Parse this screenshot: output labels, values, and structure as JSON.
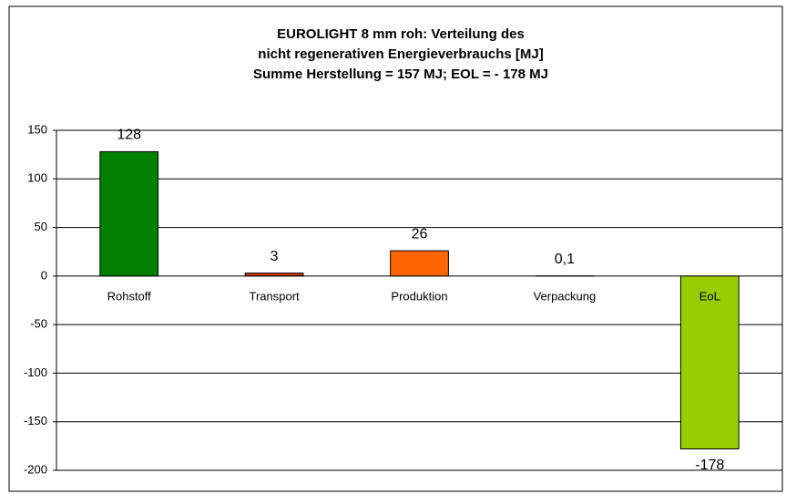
{
  "chart_data": {
    "type": "bar",
    "title": [
      "EUROLIGHT 8 mm roh: Verteilung des",
      "nicht regenerativen Energieverbrauchs [MJ]",
      "Summe Herstellung =  157 MJ; EOL = - 178 MJ"
    ],
    "categories": [
      "Rohstoff",
      "Transport",
      "Produktion",
      "Verpackung",
      "EoL"
    ],
    "values": [
      128,
      3,
      26,
      0.1,
      -178
    ],
    "value_labels": [
      "128",
      "3",
      "26",
      "0,1",
      "-178"
    ],
    "colors": [
      "#008000",
      "#cc3300",
      "#ff6600",
      "#ffcc00",
      "#99cc00"
    ],
    "ylim": [
      -200,
      150
    ],
    "yticks": [
      -200,
      -150,
      -100,
      -50,
      0,
      50,
      100,
      150
    ],
    "grid": true
  }
}
